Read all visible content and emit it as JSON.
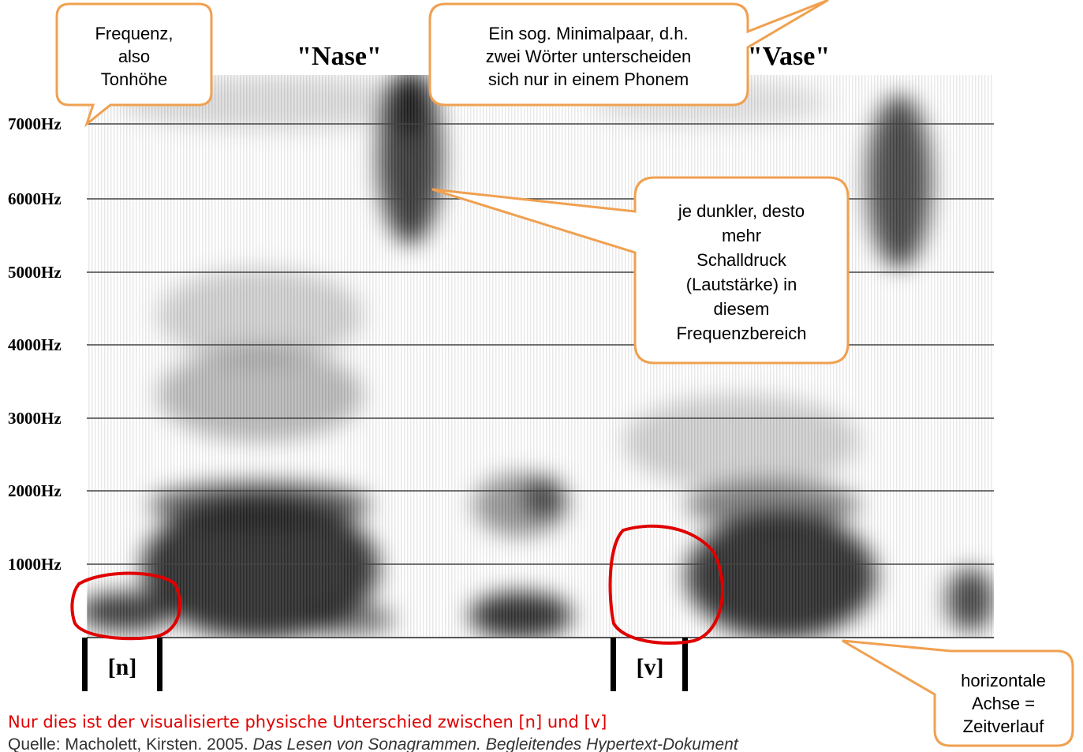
{
  "words": [
    "\"Nase\"",
    "\"Vase\""
  ],
  "axis": {
    "labels": [
      "7000Hz",
      "6000Hz",
      "5000Hz",
      "4000Hz",
      "3000Hz",
      "2000Hz",
      "1000Hz"
    ]
  },
  "segments": [
    "[n]",
    "[v]"
  ],
  "callouts": {
    "frequency": [
      "Frequenz,",
      "also",
      "Tonhöhe"
    ],
    "minimal_pair": [
      "Ein sog. Minimalpaar, d.h.",
      "zwei Wörter unterscheiden",
      "sich nur in einem Phonem"
    ],
    "darkness": [
      "je dunkler, desto",
      "mehr",
      "Schalldruck",
      "(Lautstärke) in",
      "diesem",
      "Frequenzbereich"
    ],
    "time_axis": [
      "horizontale",
      "Achse =",
      "Zeitverlauf"
    ]
  },
  "note": "Nur dies ist der visualisierte physische Unterschied zwischen [n] und [v]",
  "source": {
    "plain": "Quelle: Macholett, Kirsten. 2005. ",
    "italic": "Das Lesen von Sonagrammen. Begleitendes Hypertext-Dokument"
  }
}
